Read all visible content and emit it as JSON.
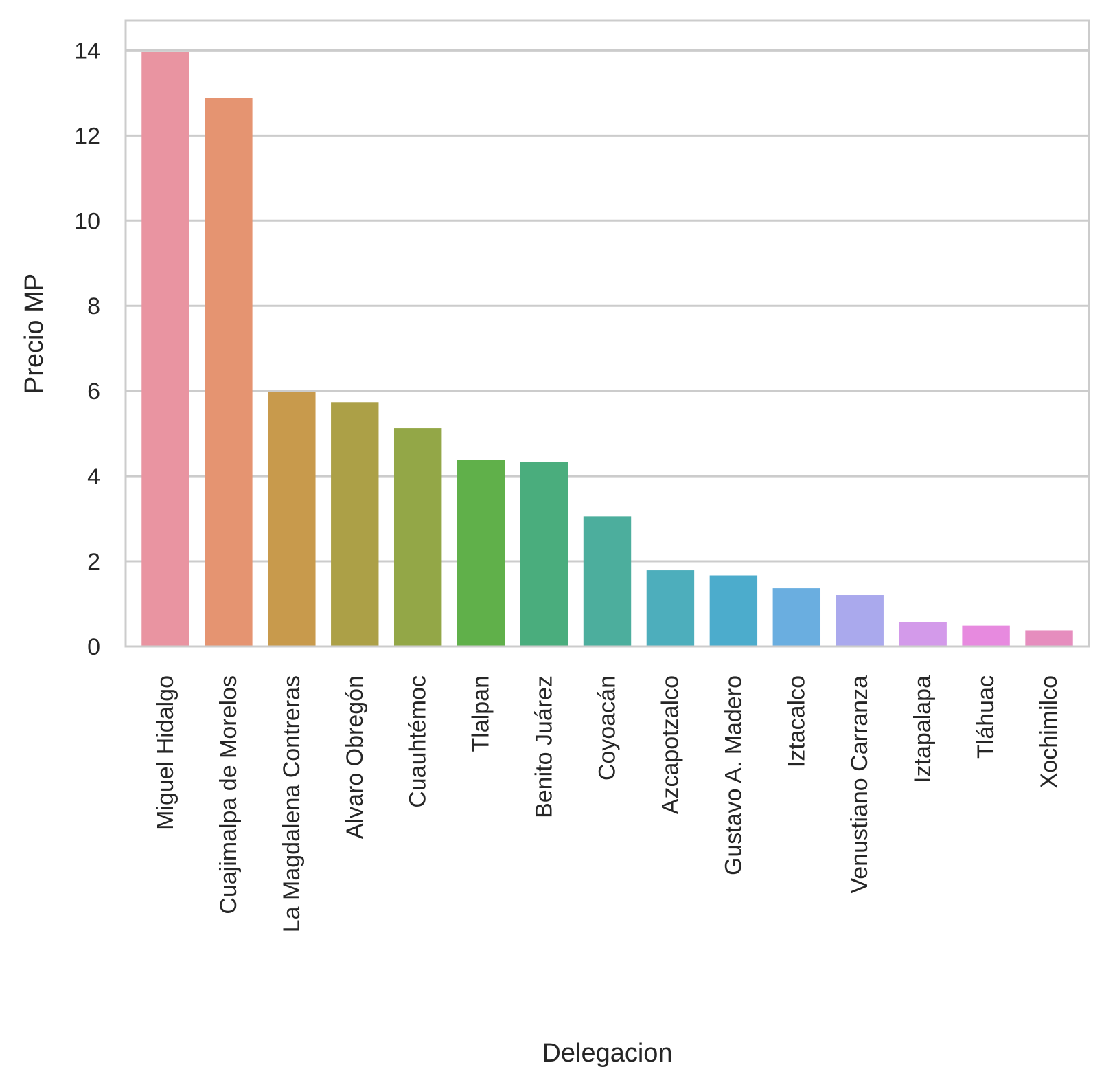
{
  "chart_data": {
    "type": "bar",
    "title": "",
    "xlabel": "Delegacion",
    "ylabel": "Precio MP",
    "ylim": [
      0,
      14.7
    ],
    "yticks": [
      0,
      2,
      4,
      6,
      8,
      10,
      12,
      14
    ],
    "grid": "horizontal",
    "categories": [
      "Miguel Hidalgo",
      "Cuajimalpa de Morelos",
      "La Magdalena Contreras",
      "Alvaro Obregón",
      "Cuauhtémoc",
      "Tlalpan",
      "Benito Juárez",
      "Coyoacán",
      "Azcapotzalco",
      "Gustavo A. Madero",
      "Iztacalco",
      "Venustiano Carranza",
      "Iztapalapa",
      "Tláhuac",
      "Xochimilco"
    ],
    "values": [
      13.97,
      12.88,
      5.98,
      5.74,
      5.13,
      4.38,
      4.34,
      3.06,
      1.79,
      1.67,
      1.37,
      1.21,
      0.57,
      0.49,
      0.38
    ],
    "colors": [
      "#e994a1",
      "#e59471",
      "#c89a4c",
      "#aca047",
      "#93a747",
      "#60b04a",
      "#4aad7d",
      "#4cae9d",
      "#4daebc",
      "#4caccc",
      "#6aaee0",
      "#aaa9ed",
      "#d39aea",
      "#e78adf",
      "#e68dbe"
    ],
    "background": "#ffffff",
    "grid_color": "#cccccc",
    "spine_color": "#cccccc"
  }
}
